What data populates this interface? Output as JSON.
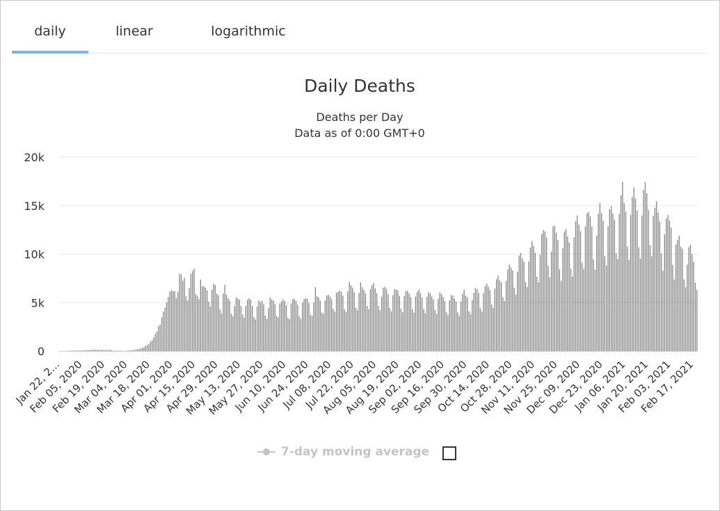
{
  "tabs": [
    {
      "label": "daily",
      "active": true
    },
    {
      "label": "linear",
      "active": false
    },
    {
      "label": "logarithmic",
      "active": false
    }
  ],
  "legend": {
    "moving_average_label": "7-day moving average",
    "moving_average_enabled": false
  },
  "colors": {
    "bar": "#808080",
    "gridline": "#e6e6e6",
    "tab_indicator": "#7cb5ec",
    "legend_disabled": "#c4c4c4"
  },
  "chart_data": {
    "type": "bar",
    "title": "Daily Deaths",
    "subtitle": [
      "Deaths per Day",
      "Data as of 0:00 GMT+0"
    ],
    "xlabel": "",
    "ylabel": "",
    "ylim": [
      0,
      20000
    ],
    "yticks": [
      0,
      5000,
      10000,
      15000,
      20000
    ],
    "ytick_labels": [
      "0",
      "5k",
      "10k",
      "15k",
      "20k"
    ],
    "grid": true,
    "xtick_labels": [
      "Jan 22, 2...",
      "Feb 05, 2020",
      "Feb 19, 2020",
      "Mar 04, 2020",
      "Mar 18, 2020",
      "Apr 01, 2020",
      "Apr 15, 2020",
      "Apr 29, 2020",
      "May 13, 2020",
      "May 27, 2020",
      "Jun 10, 2020",
      "Jun 24, 2020",
      "Jul 08, 2020",
      "Jul 22, 2020",
      "Aug 05, 2020",
      "Aug 19, 2020",
      "Sep 02, 2020",
      "Sep 16, 2020",
      "Sep 30, 2020",
      "Oct 14, 2020",
      "Oct 28, 2020",
      "Nov 11, 2020",
      "Nov 25, 2020",
      "Dec 09, 2020",
      "Dec 23, 2020",
      "Jan 06, 2021",
      "Jan 20, 2021",
      "Feb 03, 2021",
      "Feb 17, 2021"
    ],
    "start_date": "2020-01-22",
    "series": [
      {
        "values": [
          17,
          0,
          8,
          16,
          14,
          25,
          26,
          43,
          46,
          45,
          57,
          64,
          66,
          73,
          73,
          86,
          89,
          97,
          108,
          97,
          146,
          121,
          143,
          142,
          106,
          98,
          139,
          115,
          118,
          109,
          97,
          150,
          71,
          52,
          29,
          44,
          47,
          35,
          42,
          31,
          38,
          31,
          49,
          70,
          75,
          100,
          105,
          166,
          176,
          222,
          275,
          342,
          390,
          541,
          613,
          744,
          986,
          1120,
          1417,
          1786,
          2034,
          2575,
          2733,
          3488,
          4066,
          4480,
          5035,
          5571,
          6130,
          6300,
          6150,
          6200,
          5480,
          6140,
          7980,
          7880,
          7250,
          7550,
          5640,
          5210,
          6480,
          7960,
          8260,
          8510,
          5900,
          5680,
          5340,
          7360,
          6660,
          6680,
          6540,
          6270,
          5110,
          4610,
          6320,
          6950,
          6820,
          5940,
          5760,
          4300,
          3900,
          5940,
          6820,
          5800,
          5450,
          5200,
          3850,
          3600,
          4650,
          5550,
          5430,
          5320,
          4660,
          3760,
          3450,
          4660,
          5300,
          5460,
          5300,
          4640,
          3490,
          3260,
          4580,
          5260,
          5020,
          5200,
          4820,
          3680,
          3320,
          4430,
          5520,
          5320,
          5240,
          4840,
          3640,
          3480,
          4900,
          5100,
          5330,
          5180,
          4750,
          3440,
          3300,
          4900,
          5350,
          5380,
          5180,
          4780,
          3600,
          3320,
          4990,
          5380,
          5440,
          5400,
          4970,
          3760,
          3620,
          5020,
          6600,
          5660,
          5540,
          5200,
          3980,
          3840,
          5210,
          5730,
          5820,
          5630,
          5350,
          4350,
          4080,
          6020,
          6100,
          6250,
          6130,
          5740,
          4320,
          4030,
          6180,
          7130,
          6790,
          6550,
          6070,
          4480,
          4200,
          6000,
          7080,
          6570,
          6310,
          5960,
          4650,
          4320,
          6360,
          6780,
          7020,
          6440,
          5990,
          4670,
          4220,
          5620,
          6520,
          6630,
          6420,
          5850,
          4430,
          4090,
          5770,
          6400,
          6330,
          6260,
          5710,
          4380,
          4000,
          5700,
          6150,
          6220,
          5940,
          5560,
          4310,
          3960,
          5630,
          6120,
          6350,
          6000,
          5530,
          4330,
          3900,
          5600,
          6060,
          5960,
          5640,
          5320,
          4270,
          3830,
          5380,
          6040,
          5870,
          5580,
          5150,
          4040,
          3710,
          5230,
          5790,
          5730,
          5420,
          5120,
          3990,
          3640,
          5120,
          5900,
          6340,
          5730,
          5550,
          4120,
          3810,
          5260,
          6020,
          6500,
          6390,
          5990,
          4430,
          4070,
          5980,
          6700,
          6960,
          6640,
          6280,
          4820,
          4460,
          6450,
          7420,
          7780,
          7300,
          7100,
          5550,
          5160,
          7250,
          8380,
          8930,
          8610,
          8320,
          6520,
          5840,
          8180,
          9850,
          10100,
          9560,
          9200,
          7140,
          6620,
          9240,
          10680,
          11340,
          10860,
          10120,
          7670,
          7100,
          9930,
          12060,
          12480,
          12340,
          11710,
          8790,
          7590,
          10270,
          12870,
          12920,
          12210,
          11440,
          8460,
          7230,
          10600,
          12300,
          12580,
          11840,
          11200,
          8490,
          7700,
          11720,
          13380,
          13970,
          13030,
          12360,
          9120,
          8470,
          12860,
          14180,
          14350,
          13880,
          12850,
          9450,
          8410,
          11900,
          14150,
          15270,
          14240,
          13440,
          9790,
          8820,
          12860,
          14620,
          14940,
          14190,
          13540,
          10090,
          9500,
          14150,
          16050,
          17460,
          15260,
          14360,
          10780,
          9420,
          14040,
          15870,
          16880,
          15730,
          14490,
          10690,
          9530,
          13970,
          16620,
          17420,
          16270,
          14540,
          10910,
          9790,
          13930,
          14780,
          15440,
          14310,
          13380,
          10070,
          8280,
          12050,
          13660,
          14040,
          13470,
          12740,
          8900,
          7380,
          10990,
          11460,
          11910,
          10770,
          10550,
          7390,
          6580,
          8920,
          10720,
          10970,
          9980,
          9200,
          7050,
          6320
        ]
      }
    ]
  }
}
